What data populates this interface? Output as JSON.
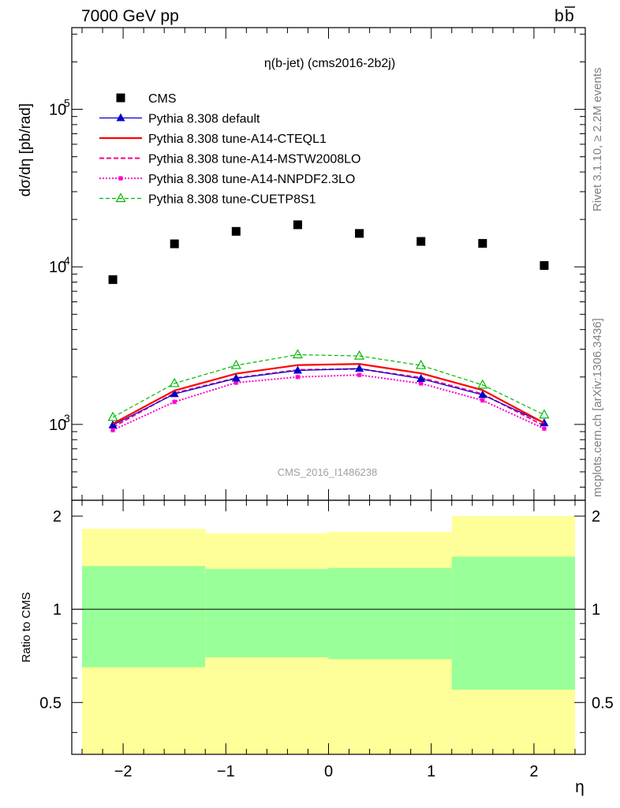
{
  "header": {
    "energy": "7000 GeV pp",
    "process_main": "b",
    "process_bar": "b",
    "side_top": "Rivet 3.1.10, ≥ 2.2M events",
    "side_bottom": "mcplots.cern.ch [arXiv:1306.3436]",
    "watermark": "CMS_2016_I1486238"
  },
  "colors": {
    "cms": "#000000",
    "default": "#0000cc",
    "cteql1": "#ff0000",
    "mstw": "#ff0088",
    "nnpdf": "#ff00cc",
    "cuetp8s1": "#00bb00",
    "band_outer": "#ffff99",
    "band_inner": "#99ff99"
  },
  "chart_data": [
    {
      "type": "scatter",
      "title": "η(b-jet) (cms2016-2b2j)",
      "ylabel": "dσ/dη [pb/rad]",
      "xlabel": "η",
      "yscale": "log",
      "xlim": [
        -2.5,
        2.5
      ],
      "ylim": [
        330,
        330000
      ],
      "y_ticks": [
        {
          "value": 1000,
          "label": "10",
          "exp": "3"
        },
        {
          "value": 10000,
          "label": "10",
          "exp": "4"
        },
        {
          "value": 100000,
          "label": "10",
          "exp": "5"
        }
      ],
      "legend_position": "top-left",
      "x": [
        -2.1,
        -1.5,
        -0.9,
        -0.3,
        0.3,
        0.9,
        1.5,
        2.1
      ],
      "series": [
        {
          "key": "cms",
          "name": "CMS",
          "values": [
            8300,
            14000,
            16800,
            18500,
            16300,
            14500,
            14100,
            10200
          ]
        },
        {
          "key": "default",
          "name": "Pythia 8.308 default",
          "values": [
            990,
            1560,
            1960,
            2200,
            2260,
            1950,
            1540,
            1020
          ]
        },
        {
          "key": "cteql1",
          "name": "Pythia 8.308 tune-A14-CTEQL1",
          "values": [
            1010,
            1640,
            2100,
            2380,
            2420,
            2110,
            1650,
            1020
          ]
        },
        {
          "key": "mstw",
          "name": "Pythia 8.308 tune-A14-MSTW2008LO",
          "values": [
            960,
            1580,
            1970,
            2220,
            2250,
            1980,
            1560,
            980
          ]
        },
        {
          "key": "nnpdf",
          "name": "Pythia 8.308 tune-A14-NNPDF2.3LO",
          "values": [
            920,
            1390,
            1840,
            2000,
            2060,
            1820,
            1420,
            940
          ]
        },
        {
          "key": "cuetp8s1",
          "name": "Pythia 8.308 tune-CUETP8S1",
          "values": [
            1110,
            1820,
            2370,
            2770,
            2720,
            2370,
            1780,
            1150
          ]
        }
      ]
    },
    {
      "type": "area",
      "ylabel": "Ratio to CMS",
      "xlabel": "η",
      "xlim": [
        -2.5,
        2.5
      ],
      "ylim": [
        0.34,
        2.25
      ],
      "x_ticks": [
        "−2",
        "−1",
        "0",
        "1",
        "2"
      ],
      "y_ticks": [
        "0.5",
        "1",
        "2"
      ],
      "reference_line": 1,
      "bins": [
        {
          "lo": -2.4,
          "hi": -1.2,
          "inner": [
            0.65,
            1.38
          ],
          "outer": [
            0.34,
            1.82
          ]
        },
        {
          "lo": -1.2,
          "hi": 0.0,
          "inner": [
            0.7,
            1.35
          ],
          "outer": [
            0.34,
            1.76
          ]
        },
        {
          "lo": 0.0,
          "hi": 1.2,
          "inner": [
            0.69,
            1.36
          ],
          "outer": [
            0.34,
            1.78
          ]
        },
        {
          "lo": 1.2,
          "hi": 2.4,
          "inner": [
            0.55,
            1.48
          ],
          "outer": [
            0.34,
            2.0
          ]
        }
      ]
    }
  ]
}
